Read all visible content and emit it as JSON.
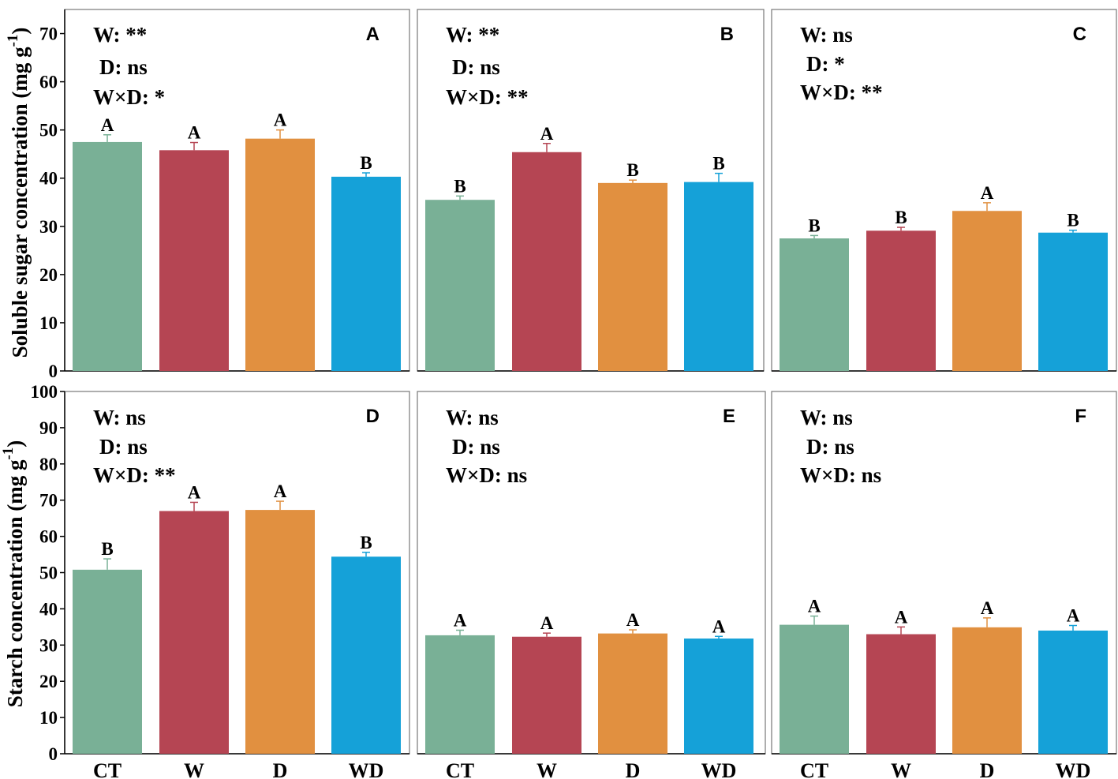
{
  "colors": {
    "CT": "#79b096",
    "W": "#b54553",
    "D": "#e19040",
    "WD": "#15a1d8"
  },
  "y_axis_labels": {
    "top": "Soluble sugar concentration (mg g<sup>-1</sup>)",
    "top_text": "Soluble sugar concentration (mg g",
    "top_sup": "-1",
    "top_close": ")",
    "bottom_text": "Starch concentration (mg g",
    "bottom_sup": "-1",
    "bottom_close": ")"
  },
  "chart_data": [
    {
      "type": "bar",
      "panel": "A",
      "categories": [
        "CT",
        "W",
        "D",
        "WD"
      ],
      "values": [
        47.5,
        45.8,
        48.2,
        40.3
      ],
      "errors": [
        1.5,
        1.6,
        1.8,
        0.8
      ],
      "letters": [
        "A",
        "A",
        "A",
        "B"
      ],
      "stats": [
        "W: **",
        "D: ns",
        "W×D: *"
      ],
      "ylim": [
        0,
        75
      ],
      "yticks": [
        0,
        10,
        20,
        30,
        40,
        50,
        60,
        70
      ],
      "ylabel": "Soluble sugar concentration (mg g-1)"
    },
    {
      "type": "bar",
      "panel": "B",
      "categories": [
        "CT",
        "W",
        "D",
        "WD"
      ],
      "values": [
        35.5,
        45.4,
        39.0,
        39.2
      ],
      "errors": [
        0.8,
        1.8,
        0.6,
        1.8
      ],
      "letters": [
        "B",
        "A",
        "B",
        "B"
      ],
      "stats": [
        "W: **",
        "D: ns",
        "W×D: **"
      ],
      "ylim": [
        0,
        75
      ],
      "yticks": [
        0,
        10,
        20,
        30,
        40,
        50,
        60,
        70
      ]
    },
    {
      "type": "bar",
      "panel": "C",
      "categories": [
        "CT",
        "W",
        "D",
        "WD"
      ],
      "values": [
        27.5,
        29.1,
        33.2,
        28.7
      ],
      "errors": [
        0.6,
        0.7,
        1.7,
        0.5
      ],
      "letters": [
        "B",
        "B",
        "A",
        "B"
      ],
      "stats": [
        "W: ns",
        "D: *",
        "W×D: **"
      ],
      "ylim": [
        0,
        75
      ],
      "yticks": [
        0,
        10,
        20,
        30,
        40,
        50,
        60,
        70
      ]
    },
    {
      "type": "bar",
      "panel": "D",
      "categories": [
        "CT",
        "W",
        "D",
        "WD"
      ],
      "values": [
        50.8,
        67.0,
        67.3,
        54.4
      ],
      "errors": [
        3.0,
        2.4,
        2.4,
        1.2
      ],
      "letters": [
        "B",
        "A",
        "A",
        "B"
      ],
      "stats": [
        "W: ns",
        "D: ns",
        "W×D: **"
      ],
      "ylim": [
        0,
        100
      ],
      "yticks": [
        0,
        10,
        20,
        30,
        40,
        50,
        60,
        70,
        80,
        90,
        100
      ],
      "ylabel": "Starch concentration (mg g-1)"
    },
    {
      "type": "bar",
      "panel": "E",
      "categories": [
        "CT",
        "W",
        "D",
        "WD"
      ],
      "values": [
        32.7,
        32.3,
        33.2,
        31.8
      ],
      "errors": [
        1.4,
        1.0,
        1.0,
        0.6
      ],
      "letters": [
        "A",
        "A",
        "A",
        "A"
      ],
      "stats": [
        "W: ns",
        "D: ns",
        "W×D: ns"
      ],
      "ylim": [
        0,
        100
      ],
      "yticks": [
        0,
        10,
        20,
        30,
        40,
        50,
        60,
        70,
        80,
        90,
        100
      ]
    },
    {
      "type": "bar",
      "panel": "F",
      "categories": [
        "CT",
        "W",
        "D",
        "WD"
      ],
      "values": [
        35.6,
        33.0,
        34.9,
        34.0
      ],
      "errors": [
        2.4,
        2.0,
        2.6,
        1.4
      ],
      "letters": [
        "A",
        "A",
        "A",
        "A"
      ],
      "stats": [
        "W: ns",
        "D: ns",
        "W×D: ns"
      ],
      "ylim": [
        0,
        100
      ],
      "yticks": [
        0,
        10,
        20,
        30,
        40,
        50,
        60,
        70,
        80,
        90,
        100
      ]
    }
  ]
}
